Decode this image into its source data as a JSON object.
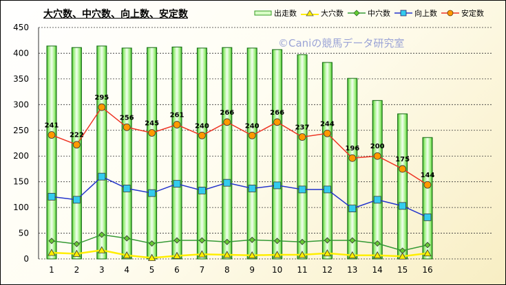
{
  "chart_data": {
    "type": "bar",
    "title": "大穴数、中穴数、向上数、安定数",
    "watermark": "©Caniの競馬データ研究室",
    "categories": [
      "1",
      "2",
      "3",
      "4",
      "5",
      "6",
      "7",
      "8",
      "9",
      "10",
      "11",
      "12",
      "13",
      "14",
      "15",
      "16"
    ],
    "ylim": [
      0,
      450
    ],
    "yticks": [
      0,
      50,
      100,
      150,
      200,
      250,
      300,
      350,
      400,
      450
    ],
    "grid": true,
    "legend_position": "top-right",
    "series": [
      {
        "name": "出走数",
        "kind": "bar",
        "color": "#66cc33",
        "values": [
          414,
          411,
          414,
          410,
          411,
          412,
          410,
          411,
          410,
          407,
          397,
          382,
          351,
          308,
          282,
          236
        ]
      },
      {
        "name": "大穴数",
        "kind": "line",
        "marker": "triangle",
        "color": "#ffee00",
        "values": [
          12,
          10,
          17,
          7,
          2,
          6,
          9,
          8,
          7,
          8,
          8,
          11,
          7,
          7,
          5,
          11
        ]
      },
      {
        "name": "中穴数",
        "kind": "line",
        "marker": "diamond",
        "color": "#339933",
        "values": [
          35,
          29,
          47,
          40,
          30,
          36,
          36,
          33,
          37,
          35,
          33,
          36,
          36,
          30,
          16,
          27
        ]
      },
      {
        "name": "向上数",
        "kind": "line",
        "marker": "square",
        "color": "#2233cc",
        "values": [
          121,
          115,
          160,
          137,
          128,
          146,
          133,
          148,
          137,
          143,
          135,
          135,
          98,
          115,
          103,
          81
        ]
      },
      {
        "name": "安定数",
        "kind": "line",
        "marker": "circle",
        "color": "#ee3322",
        "values": [
          241,
          222,
          295,
          256,
          245,
          261,
          240,
          266,
          240,
          266,
          237,
          244,
          196,
          200,
          175,
          144
        ]
      }
    ],
    "data_labels": {
      "series": "安定数",
      "values": [
        241,
        222,
        295,
        256,
        245,
        261,
        240,
        266,
        240,
        266,
        237,
        244,
        196,
        200,
        175,
        144
      ]
    }
  }
}
